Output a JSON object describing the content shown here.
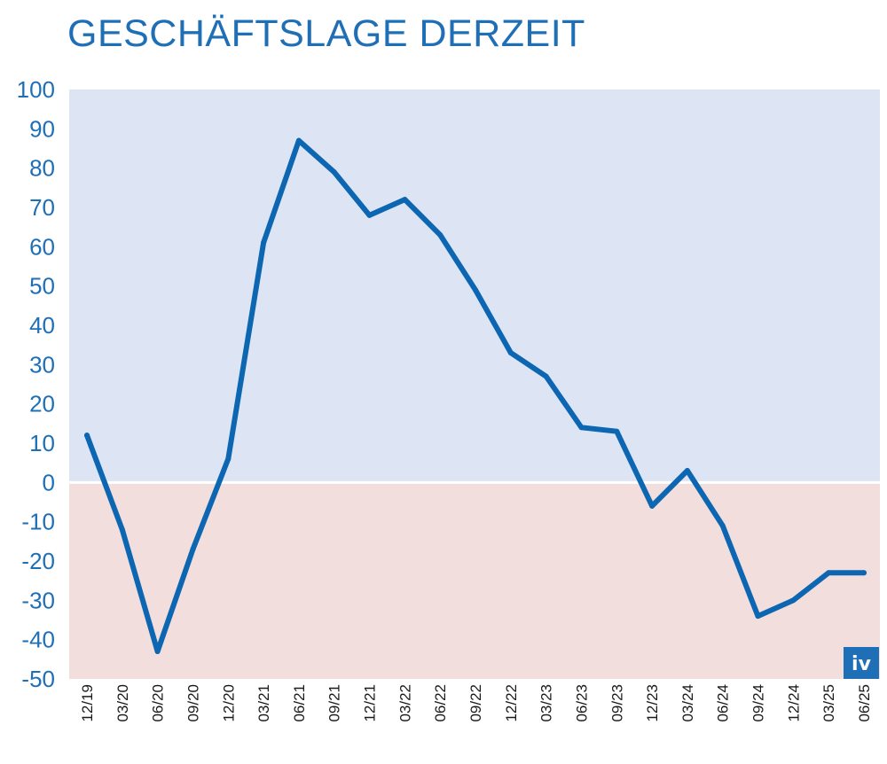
{
  "chart_data": {
    "type": "line",
    "title": "GESCHÄFTSLAGE DERZEIT",
    "xlabel": "",
    "ylabel": "",
    "ylim": [
      -50,
      100
    ],
    "yticks": [
      100,
      90,
      80,
      70,
      60,
      50,
      40,
      30,
      20,
      10,
      0,
      -10,
      -20,
      -30,
      -40,
      -50
    ],
    "categories": [
      "12/19",
      "03/20",
      "06/20",
      "09/20",
      "12/20",
      "03/21",
      "06/21",
      "09/21",
      "12/21",
      "03/22",
      "06/22",
      "09/22",
      "12/22",
      "03/23",
      "06/23",
      "09/23",
      "12/23",
      "03/24",
      "06/24",
      "09/24",
      "12/24",
      "03/25",
      "06/25"
    ],
    "series": [
      {
        "values": [
          12,
          -12,
          -43,
          -17,
          6,
          61,
          87,
          79,
          68,
          72,
          63,
          49,
          33,
          27,
          14,
          13,
          -6,
          3,
          -11,
          -34,
          -30,
          -23,
          -23
        ],
        "color": "#0d66b1"
      }
    ],
    "background": {
      "positive": "#dde5f5",
      "negative": "#f1dedd"
    },
    "grid": false,
    "legend": "none",
    "logo": "iv"
  }
}
